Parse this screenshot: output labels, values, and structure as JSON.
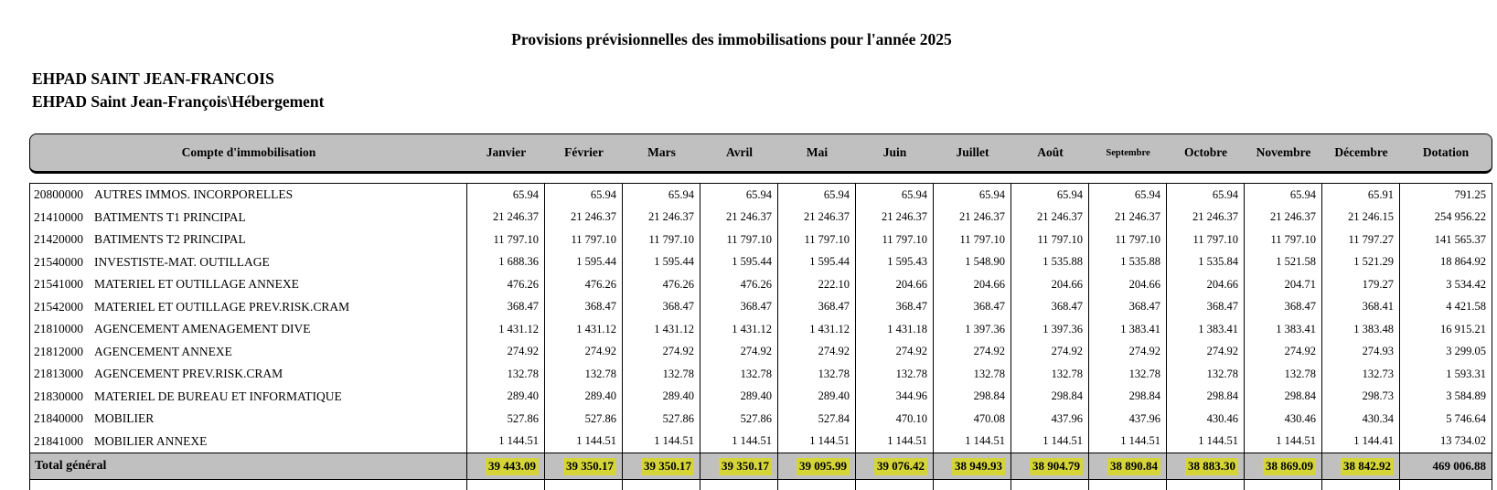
{
  "page": {
    "title": "Provisions prévisionnelles des immobilisations pour l'année 2025",
    "establishment": "EHPAD SAINT JEAN-FRANCOIS",
    "section": "EHPAD Saint Jean-François\\Hébergement"
  },
  "table": {
    "account_header": "Compte d'immobilisation",
    "columns": [
      "Janvier",
      "Février",
      "Mars",
      "Avril",
      "Mai",
      "Juin",
      "Juillet",
      "Août",
      "Septembre",
      "Octobre",
      "Novembre",
      "Décembre",
      "Dotation"
    ],
    "rows": [
      {
        "code": "20800000",
        "label": "AUTRES IMMOS. INCORPORELLES",
        "values": [
          "65.94",
          "65.94",
          "65.94",
          "65.94",
          "65.94",
          "65.94",
          "65.94",
          "65.94",
          "65.94",
          "65.94",
          "65.94",
          "65.91",
          "791.25"
        ]
      },
      {
        "code": "21410000",
        "label": "BATIMENTS T1 PRINCIPAL",
        "values": [
          "21 246.37",
          "21 246.37",
          "21 246.37",
          "21 246.37",
          "21 246.37",
          "21 246.37",
          "21 246.37",
          "21 246.37",
          "21 246.37",
          "21 246.37",
          "21 246.37",
          "21 246.15",
          "254 956.22"
        ]
      },
      {
        "code": "21420000",
        "label": "BATIMENTS T2 PRINCIPAL",
        "values": [
          "11 797.10",
          "11 797.10",
          "11 797.10",
          "11 797.10",
          "11 797.10",
          "11 797.10",
          "11 797.10",
          "11 797.10",
          "11 797.10",
          "11 797.10",
          "11 797.10",
          "11 797.27",
          "141 565.37"
        ]
      },
      {
        "code": "21540000",
        "label": "INVESTISTE-MAT. OUTILLAGE",
        "values": [
          "1 688.36",
          "1 595.44",
          "1 595.44",
          "1 595.44",
          "1 595.44",
          "1 595.43",
          "1 548.90",
          "1 535.88",
          "1 535.88",
          "1 535.84",
          "1 521.58",
          "1 521.29",
          "18 864.92"
        ]
      },
      {
        "code": "21541000",
        "label": "MATERIEL ET OUTILLAGE ANNEXE",
        "values": [
          "476.26",
          "476.26",
          "476.26",
          "476.26",
          "222.10",
          "204.66",
          "204.66",
          "204.66",
          "204.66",
          "204.66",
          "204.71",
          "179.27",
          "3 534.42"
        ]
      },
      {
        "code": "21542000",
        "label": "MATERIEL ET OUTILLAGE PREV.RISK.CRAM",
        "values": [
          "368.47",
          "368.47",
          "368.47",
          "368.47",
          "368.47",
          "368.47",
          "368.47",
          "368.47",
          "368.47",
          "368.47",
          "368.47",
          "368.41",
          "4 421.58"
        ]
      },
      {
        "code": "21810000",
        "label": "AGENCEMENT AMENAGEMENT DIVE",
        "values": [
          "1 431.12",
          "1 431.12",
          "1 431.12",
          "1 431.12",
          "1 431.12",
          "1 431.18",
          "1 397.36",
          "1 397.36",
          "1 383.41",
          "1 383.41",
          "1 383.41",
          "1 383.48",
          "16 915.21"
        ]
      },
      {
        "code": "21812000",
        "label": "AGENCEMENT ANNEXE",
        "values": [
          "274.92",
          "274.92",
          "274.92",
          "274.92",
          "274.92",
          "274.92",
          "274.92",
          "274.92",
          "274.92",
          "274.92",
          "274.92",
          "274.93",
          "3 299.05"
        ]
      },
      {
        "code": "21813000",
        "label": "AGENCEMENT PREV.RISK.CRAM",
        "values": [
          "132.78",
          "132.78",
          "132.78",
          "132.78",
          "132.78",
          "132.78",
          "132.78",
          "132.78",
          "132.78",
          "132.78",
          "132.78",
          "132.73",
          "1 593.31"
        ]
      },
      {
        "code": "21830000",
        "label": "MATERIEL DE BUREAU ET INFORMATIQUE",
        "values": [
          "289.40",
          "289.40",
          "289.40",
          "289.40",
          "289.40",
          "344.96",
          "298.84",
          "298.84",
          "298.84",
          "298.84",
          "298.84",
          "298.73",
          "3 584.89"
        ]
      },
      {
        "code": "21840000",
        "label": "MOBILIER",
        "values": [
          "527.86",
          "527.86",
          "527.86",
          "527.86",
          "527.84",
          "470.10",
          "470.08",
          "437.96",
          "437.96",
          "430.46",
          "430.46",
          "430.34",
          "5 746.64"
        ]
      },
      {
        "code": "21841000",
        "label": "MOBILIER ANNEXE",
        "values": [
          "1 144.51",
          "1 144.51",
          "1 144.51",
          "1 144.51",
          "1 144.51",
          "1 144.51",
          "1 144.51",
          "1 144.51",
          "1 144.51",
          "1 144.51",
          "1 144.51",
          "1 144.41",
          "13 734.02"
        ]
      }
    ],
    "total": {
      "label": "Total général",
      "values": [
        "39 443.09",
        "39 350.17",
        "39 350.17",
        "39 350.17",
        "39 095.99",
        "39 076.42",
        "38 949.93",
        "38 904.79",
        "38 890.84",
        "38 883.30",
        "38 869.09",
        "38 842.92",
        "469 006.88"
      ]
    }
  },
  "colors": {
    "header_band_bg": "#c0c0c0",
    "total_row_bg": "#c0c0c0",
    "highlight": "#d5d53a"
  }
}
